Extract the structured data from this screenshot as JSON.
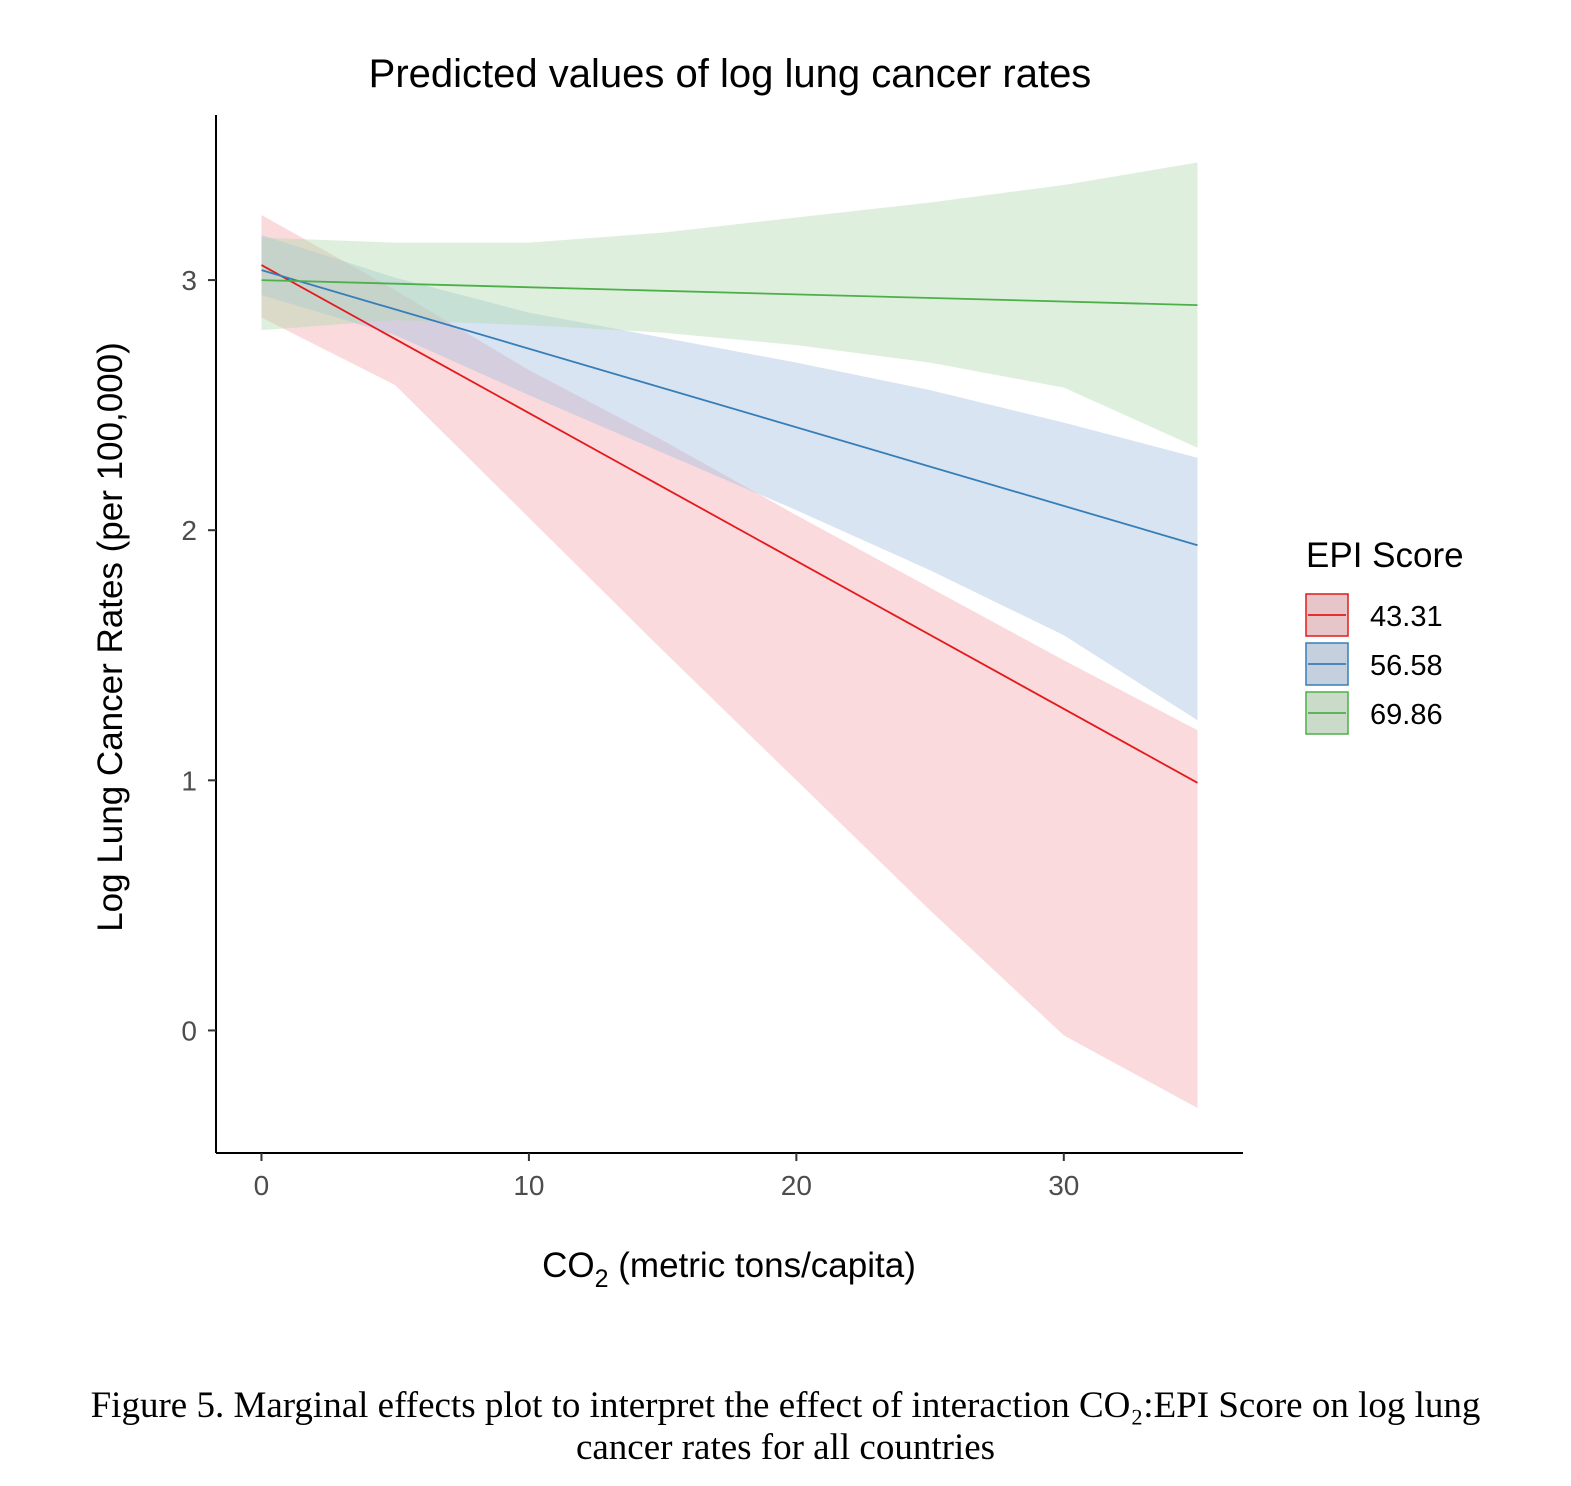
{
  "chart_data": {
    "type": "line",
    "title": "Predicted values of log lung cancer rates",
    "xlabel": {
      "prefix": "CO",
      "subscript": "2",
      "suffix": " (metric tons/capita)"
    },
    "ylabel": "Log Lung Cancer Rates (per 100,000)",
    "xlim": [
      -1.7,
      36.7
    ],
    "ylim": [
      -0.49,
      3.66
    ],
    "xticks": [
      0,
      10,
      20,
      30
    ],
    "yticks": [
      0,
      1,
      2,
      3
    ],
    "grid": false,
    "legend": {
      "title": "EPI Score",
      "position": "right"
    },
    "series": [
      {
        "name": "43.31",
        "color": "#e41a1c",
        "fill": "#f4a7ac",
        "x": [
          0,
          35
        ],
        "y": [
          3.06,
          0.99
        ],
        "ci_x": [
          0,
          5,
          10,
          15,
          20,
          25,
          30,
          35
        ],
        "ci_lower": [
          2.85,
          2.58,
          2.05,
          1.52,
          1.0,
          0.48,
          -0.02,
          -0.31
        ],
        "ci_upper": [
          3.26,
          2.96,
          2.64,
          2.36,
          2.06,
          1.77,
          1.48,
          1.2
        ]
      },
      {
        "name": "56.58",
        "color": "#377eb8",
        "fill": "#a3bfdf",
        "x": [
          0,
          35
        ],
        "y": [
          3.04,
          1.94
        ],
        "ci_x": [
          0,
          5,
          10,
          15,
          20,
          25,
          30,
          35
        ],
        "ci_lower": [
          2.94,
          2.78,
          2.54,
          2.31,
          2.08,
          1.84,
          1.58,
          1.24
        ],
        "ci_upper": [
          3.18,
          3.01,
          2.87,
          2.77,
          2.67,
          2.56,
          2.43,
          2.29
        ]
      },
      {
        "name": "69.86",
        "color": "#4daf4a",
        "fill": "#b0dcae",
        "x": [
          0,
          35
        ],
        "y": [
          3.0,
          2.9
        ],
        "ci_x": [
          0,
          5,
          10,
          15,
          20,
          25,
          30,
          35
        ],
        "ci_lower": [
          2.8,
          2.84,
          2.82,
          2.79,
          2.74,
          2.67,
          2.57,
          2.33
        ],
        "ci_upper": [
          3.17,
          3.15,
          3.15,
          3.19,
          3.25,
          3.31,
          3.38,
          3.47
        ]
      }
    ]
  },
  "caption": {
    "line1": "Figure 5. Marginal effects plot to interpret the effect of interaction CO₂:EPI Score on log lung",
    "line2": "cancer rates for all countries"
  }
}
